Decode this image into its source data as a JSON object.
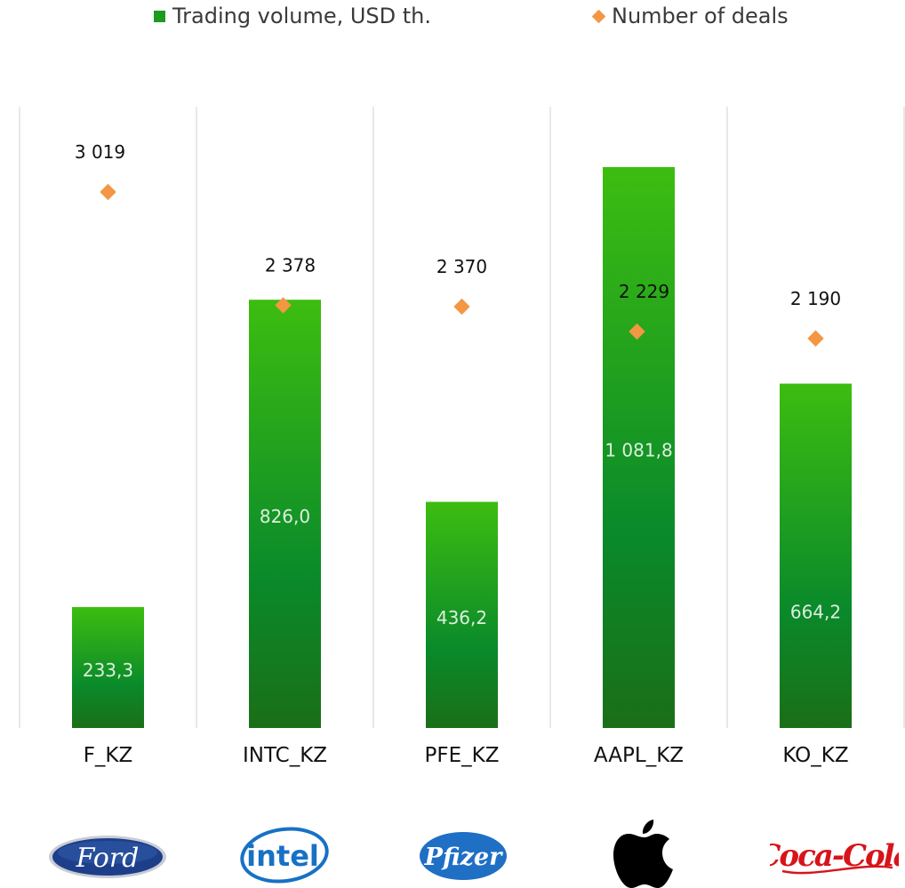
{
  "legend": {
    "volume_label": "Trading volume, USD th.",
    "deals_label": "Number of deals"
  },
  "chart_data": {
    "type": "bar",
    "categories": [
      "F_KZ",
      "INTC_KZ",
      "PFE_KZ",
      "AAPL_KZ",
      "KO_KZ"
    ],
    "series": [
      {
        "name": "Trading volume, USD th.",
        "type": "bar",
        "values": [
          233.3,
          826.0,
          436.2,
          1081.8,
          664.2
        ],
        "labels": [
          "233,3",
          "826,0",
          "436,2",
          "1 081,8",
          "664,2"
        ]
      },
      {
        "name": "Number of deals",
        "type": "scatter",
        "values": [
          3019,
          2378,
          2370,
          2229,
          2190
        ],
        "labels": [
          "3 019",
          "2 378",
          "2 370",
          "2 229",
          "2 190"
        ]
      }
    ],
    "grid": "vertical-separators",
    "legend_position": "top"
  },
  "logos": {
    "ford": "Ford",
    "intel": "intel",
    "pfizer": "Pfizer",
    "apple": "apple-icon",
    "cocacola": "Coca-Cola"
  },
  "colors": {
    "bar_top": "#3dbd10",
    "bar_mid": "#0a8a2a",
    "bar_bottom": "#1a6f18",
    "marker": "#f39744",
    "ford_blue": "#1d3f8a",
    "intel_blue": "#1771c5",
    "pfizer_blue": "#1f6fc5",
    "coke_red": "#d7141a"
  }
}
